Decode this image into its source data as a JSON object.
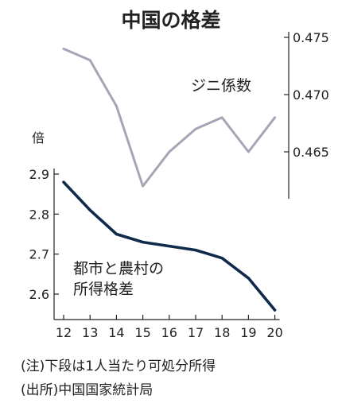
{
  "title": "中国の格差",
  "chart_data": {
    "type": "line",
    "x": [
      "12",
      "13",
      "14",
      "15",
      "16",
      "17",
      "18",
      "19",
      "20"
    ],
    "series": [
      {
        "name": "ジニ係数",
        "axis": "right",
        "color": "#a5a5b5",
        "values": [
          0.474,
          0.473,
          0.469,
          0.462,
          0.465,
          0.467,
          0.468,
          0.465,
          0.468
        ]
      },
      {
        "name": "都市と農村の所得格差",
        "name_lines": [
          "都市と農村の",
          "所得格差"
        ],
        "axis": "left",
        "color": "#102a4c",
        "values": [
          2.88,
          2.81,
          2.75,
          2.73,
          2.72,
          2.71,
          2.69,
          2.64,
          2.56
        ]
      }
    ],
    "left_axis": {
      "unit": "倍",
      "ticks": [
        "2.9",
        "2.8",
        "2.7",
        "2.6"
      ],
      "range": [
        2.55,
        2.9
      ]
    },
    "right_axis": {
      "ticks": [
        "0.475",
        "0.470",
        "0.465"
      ],
      "range": [
        0.4615,
        0.475
      ]
    },
    "grid": false,
    "legend": "inline labels"
  },
  "notes": [
    "(注)下段は1人当たり可処分所得",
    "(出所)中国国家統計局"
  ]
}
